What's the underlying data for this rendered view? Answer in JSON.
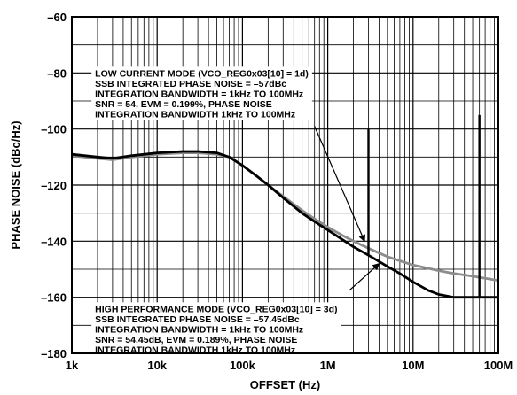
{
  "chart_data": {
    "type": "line",
    "title": "",
    "xlabel": "OFFSET (Hz)",
    "ylabel": "PHASE NOISE (dBc/Hz)",
    "x_scale": "log",
    "xlim": [
      1000,
      100000000
    ],
    "ylim": [
      -180,
      -60
    ],
    "grid": true,
    "x_tick_values": [
      1000,
      10000,
      100000,
      1000000,
      10000000,
      100000000
    ],
    "x_tick_labels": [
      "1k",
      "10k",
      "100k",
      "1M",
      "10M",
      "100M"
    ],
    "y_tick_values": [
      -60,
      -80,
      -100,
      -120,
      -140,
      -160,
      -180
    ],
    "y_tick_labels": [
      "–60",
      "–80",
      "–100",
      "–120",
      "–140",
      "–160",
      "–180"
    ],
    "series": [
      {
        "color": "#8c8c8c",
        "x": [
          1000,
          2000,
          3000,
          5000,
          10000,
          20000,
          30000,
          50000,
          70000,
          100000,
          150000,
          200000,
          300000,
          500000,
          700000,
          1000000,
          1500000,
          2000000,
          3000000,
          5000000,
          7000000,
          10000000,
          20000000,
          30000000,
          50000000,
          100000000
        ],
        "y": [
          -109.5,
          -110.5,
          -111,
          -110,
          -109,
          -108.5,
          -108.5,
          -109,
          -110,
          -113,
          -117,
          -120,
          -124,
          -129,
          -132,
          -135,
          -138,
          -140,
          -142.5,
          -145.5,
          -147,
          -148.5,
          -150.5,
          -151.5,
          -152.5,
          -154
        ]
      },
      {
        "color": "#000000",
        "x": [
          1000,
          2000,
          3000,
          5000,
          10000,
          20000,
          30000,
          50000,
          70000,
          100000,
          150000,
          200000,
          300000,
          500000,
          700000,
          1000000,
          1500000,
          2000000,
          3000000,
          5000000,
          7000000,
          10000000,
          15000000,
          20000000,
          30000000,
          50000000,
          100000000
        ],
        "y": [
          -109,
          -110,
          -110.5,
          -109.5,
          -108.5,
          -108,
          -108,
          -108.5,
          -110,
          -113,
          -117,
          -120,
          -124.5,
          -130,
          -133,
          -136,
          -139.5,
          -142,
          -145,
          -149,
          -151.5,
          -154.5,
          -157.5,
          -159,
          -160,
          -160,
          -160
        ]
      }
    ],
    "spurs": [
      {
        "x": 3000000,
        "y_top": -100,
        "y_bottom": -145,
        "color": "#000000"
      },
      {
        "x": 60000000,
        "y_top": -95,
        "y_bottom": -160,
        "color": "#000000"
      }
    ],
    "annotations": [
      {
        "lines": [
          "LOW CURRENT MODE (VCO_REG0x03[10] = 1d)",
          "SSB INTEGRATED PHASE NOISE = –57dBc",
          "INTEGRATION BANDWIDTH = 1kHz TO 100MHz",
          "SNR = 54, EVM = 0.199%, PHASE NOISE",
          "INTEGRATION BANDWIDTH 1kHz TO 100MHz"
        ],
        "arrow_from": [
          700000,
          -99
        ],
        "arrow_to": [
          2700000,
          -140
        ]
      },
      {
        "lines": [
          "HIGH PERFORMANCE MODE (VCO_REG0x03[10] = 3d)",
          "SSB INTEGRATED PHASE NOISE = –57.45dBc",
          "INTEGRATION BANDWIDTH = 1kHz TO 100MHz",
          "SNR = 54.45dB, EVM = 0.189%, PHASE NOISE",
          "INTEGRATION BANDWIDTH 1kHz TO 100MHz"
        ],
        "arrow_from": [
          1800000,
          -157.5
        ],
        "arrow_to": [
          4000000,
          -148
        ]
      }
    ]
  }
}
